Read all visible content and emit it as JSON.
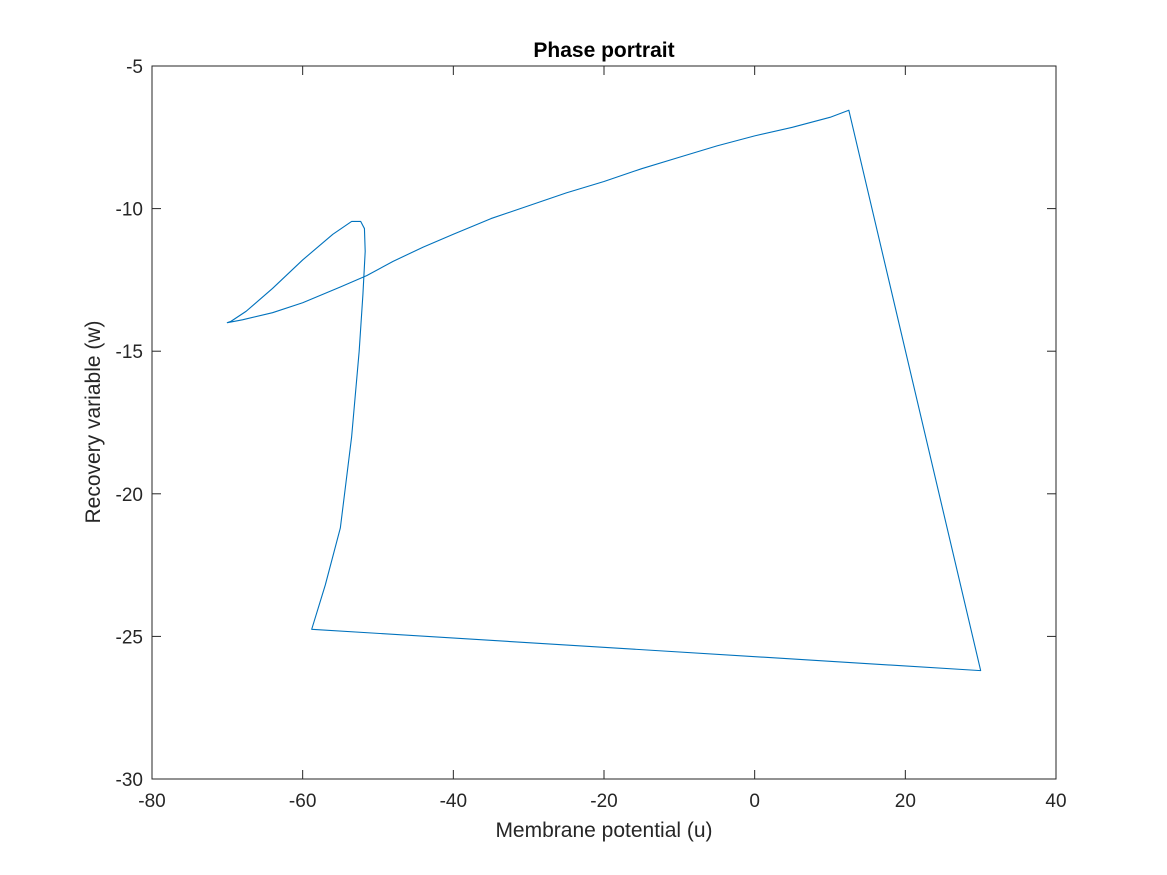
{
  "chart_data": {
    "type": "line",
    "title": "Phase portrait",
    "xlabel": "Membrane potential (u)",
    "ylabel": "Recovery variable (w)",
    "xlim": [
      -80,
      40
    ],
    "ylim": [
      -30,
      -5
    ],
    "xticks": [
      -80,
      -60,
      -40,
      -20,
      0,
      20,
      40
    ],
    "yticks": [
      -30,
      -25,
      -20,
      -15,
      -10,
      -5
    ],
    "xtick_labels": [
      "-80",
      "-60",
      "-40",
      "-20",
      "0",
      "20",
      "40"
    ],
    "ytick_labels": [
      "-30",
      "-25",
      "-20",
      "-15",
      "-10",
      "-5"
    ],
    "grid": false,
    "box": true,
    "series": [
      {
        "color": "#0072BD",
        "points": [
          [
            -58.8,
            -24.75
          ],
          [
            -57.0,
            -23.2
          ],
          [
            -55.0,
            -21.2
          ],
          [
            -53.5,
            -18.0
          ],
          [
            -52.5,
            -15.0
          ],
          [
            -52.0,
            -13.0
          ],
          [
            -51.7,
            -11.5
          ],
          [
            -51.8,
            -10.7
          ],
          [
            -52.3,
            -10.45
          ],
          [
            -53.5,
            -10.45
          ],
          [
            -56.0,
            -10.9
          ],
          [
            -60.0,
            -11.8
          ],
          [
            -64.0,
            -12.8
          ],
          [
            -67.5,
            -13.6
          ],
          [
            -69.5,
            -13.95
          ],
          [
            -70.0,
            -14.0
          ],
          [
            -68.0,
            -13.9
          ],
          [
            -64.0,
            -13.65
          ],
          [
            -60.0,
            -13.3
          ],
          [
            -55.0,
            -12.75
          ],
          [
            -51.5,
            -12.35
          ],
          [
            -48.0,
            -11.85
          ],
          [
            -44.0,
            -11.35
          ],
          [
            -40.0,
            -10.9
          ],
          [
            -35.0,
            -10.35
          ],
          [
            -30.0,
            -9.9
          ],
          [
            -25.0,
            -9.45
          ],
          [
            -20.0,
            -9.05
          ],
          [
            -15.0,
            -8.6
          ],
          [
            -10.0,
            -8.2
          ],
          [
            -5.0,
            -7.8
          ],
          [
            0.0,
            -7.45
          ],
          [
            5.0,
            -7.15
          ],
          [
            10.0,
            -6.8
          ],
          [
            12.5,
            -6.55
          ],
          [
            30.0,
            -26.2
          ],
          [
            -58.8,
            -24.75
          ]
        ]
      }
    ]
  }
}
